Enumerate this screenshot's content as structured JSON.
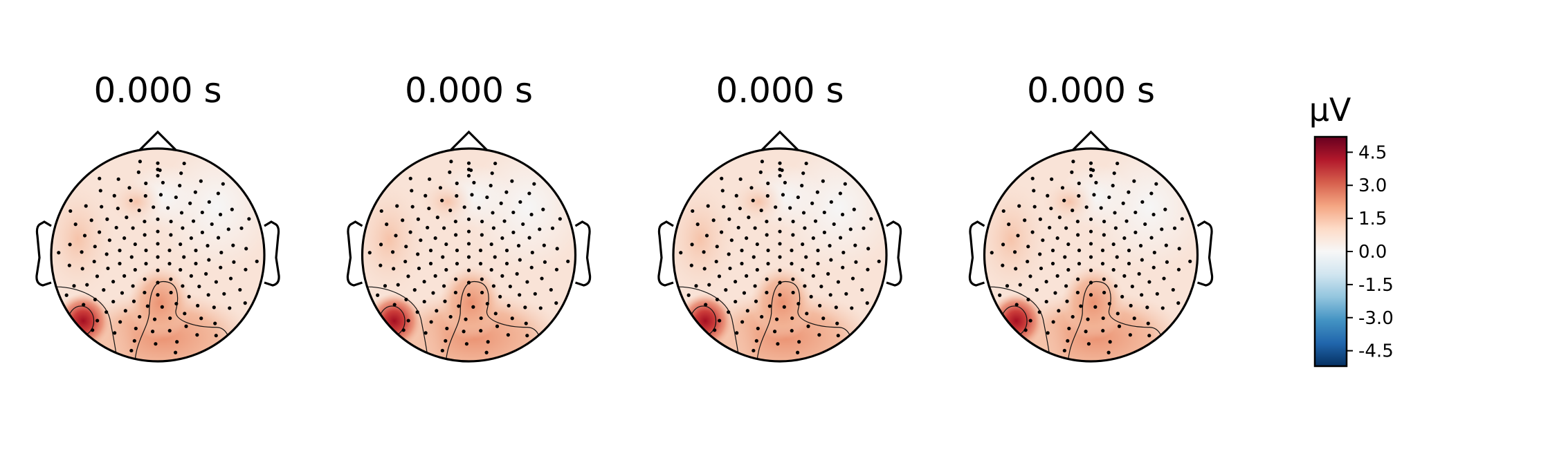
{
  "chart_data": {
    "type": "heatmap",
    "subtype": "eeg-topomap",
    "panels": [
      {
        "title": "0.000 s"
      },
      {
        "title": "0.000 s"
      },
      {
        "title": "0.000 s"
      },
      {
        "title": "0.000 s"
      }
    ],
    "colorbar": {
      "label": "µV",
      "colormap": "RdBu_r",
      "vmin": -5.2,
      "vmax": 5.2,
      "ticks": [
        4.5,
        3.0,
        1.5,
        0.0,
        -1.5,
        -3.0,
        -4.5
      ],
      "tick_labels": [
        "4.5",
        "3.0",
        "1.5",
        "0.0",
        "-1.5",
        "-3.0",
        "-4.5"
      ]
    },
    "field_features": [
      {
        "region": "left-occipital",
        "value": 5.0
      },
      {
        "region": "central-occipital",
        "value": 2.5
      },
      {
        "region": "left-temporal",
        "value": 1.3
      },
      {
        "region": "right-frontal",
        "value": 0.2
      }
    ],
    "contour_levels": [
      2.0,
      4.0
    ],
    "grid": false,
    "legend": "none"
  }
}
